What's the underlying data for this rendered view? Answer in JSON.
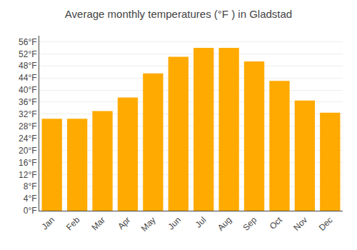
{
  "chart_data": {
    "type": "bar",
    "title": "Average monthly temperatures (°F ) in Gladstad",
    "categories": [
      "Jan",
      "Feb",
      "Mar",
      "Apr",
      "May",
      "Jun",
      "Jul",
      "Aug",
      "Sep",
      "Oct",
      "Nov",
      "Dec"
    ],
    "values": [
      30.5,
      30.5,
      33,
      37.5,
      45.5,
      51,
      54,
      54,
      49.5,
      43,
      36.5,
      32.5
    ],
    "color": "#FFAA00",
    "ylim": [
      0,
      58
    ],
    "yticks": [
      {
        "value": 0,
        "label": "0°F"
      },
      {
        "value": 4,
        "label": "4°F"
      },
      {
        "value": 8,
        "label": "8°F"
      },
      {
        "value": 12,
        "label": "12°F"
      },
      {
        "value": 16,
        "label": "16°F"
      },
      {
        "value": 20,
        "label": "20°F"
      },
      {
        "value": 24,
        "label": "24°F"
      },
      {
        "value": 28,
        "label": "28°F"
      },
      {
        "value": 32,
        "label": "32°F"
      },
      {
        "value": 36,
        "label": "36°F"
      },
      {
        "value": 40,
        "label": "40°F"
      },
      {
        "value": 44,
        "label": "44°F"
      },
      {
        "value": 48,
        "label": "48°F"
      },
      {
        "value": 52,
        "label": "52°F"
      },
      {
        "value": 56,
        "label": "56°F"
      }
    ],
    "grid": true
  }
}
